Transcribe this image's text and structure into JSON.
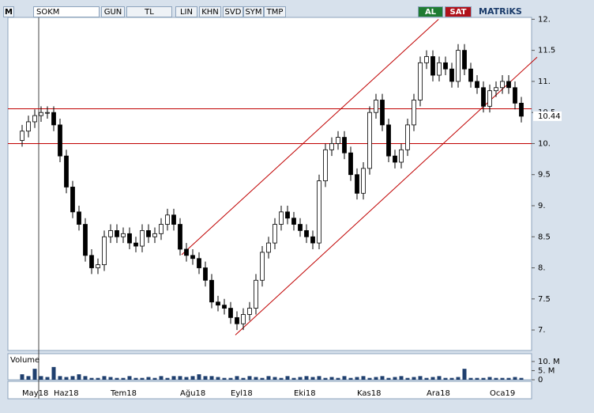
{
  "toolbar": {
    "symbol": "SOKM",
    "buttons": [
      "GUN",
      "TL",
      "LIN",
      "KHN",
      "SVD",
      "SYM",
      "TMP"
    ],
    "buy": "AL",
    "sell": "SAT",
    "brand": "MATRiKS"
  },
  "chart_data": {
    "type": "candlestick",
    "categories": [
      "May18",
      null,
      null,
      null,
      null,
      "Haz18",
      null,
      null,
      null,
      null,
      null,
      null,
      null,
      null,
      "Tem18",
      null,
      null,
      null,
      null,
      null,
      null,
      null,
      null,
      null,
      null,
      "Ağu18",
      null,
      null,
      null,
      null,
      null,
      null,
      null,
      "Eyl18",
      null,
      null,
      null,
      null,
      null,
      null,
      null,
      null,
      null,
      "Eki18",
      null,
      null,
      null,
      null,
      null,
      null,
      null,
      null,
      null,
      "Kas18",
      null,
      null,
      null,
      null,
      null,
      null,
      null,
      null,
      null,
      null,
      "Ara18",
      null,
      null,
      null,
      null,
      null,
      null,
      null,
      null,
      null,
      "Oca19",
      null,
      null,
      null,
      null,
      null
    ],
    "open": [
      10.05,
      10.2,
      10.35,
      10.45,
      10.5,
      10.5,
      10.3,
      9.8,
      9.3,
      8.9,
      8.7,
      8.2,
      8.0,
      8.05,
      8.5,
      8.6,
      8.5,
      8.55,
      8.4,
      8.35,
      8.6,
      8.5,
      8.55,
      8.7,
      8.85,
      8.7,
      8.3,
      8.2,
      8.15,
      8.0,
      7.8,
      7.45,
      7.4,
      7.35,
      7.2,
      7.1,
      7.25,
      7.35,
      7.8,
      8.25,
      8.4,
      8.7,
      8.9,
      8.8,
      8.7,
      8.6,
      8.5,
      8.4,
      9.4,
      9.9,
      10.0,
      10.1,
      9.85,
      9.5,
      9.2,
      9.6,
      10.5,
      10.7,
      10.3,
      9.8,
      9.7,
      9.9,
      10.3,
      10.7,
      11.3,
      11.4,
      11.1,
      11.3,
      11.2,
      11.0,
      11.5,
      11.2,
      11.0,
      10.9,
      10.6,
      10.85,
      10.9,
      11.0,
      10.9,
      10.65
    ],
    "high": [
      10.3,
      10.45,
      10.55,
      10.6,
      10.6,
      10.6,
      10.4,
      9.9,
      9.4,
      9.0,
      8.8,
      8.3,
      8.15,
      8.6,
      8.7,
      8.7,
      8.65,
      8.65,
      8.5,
      8.7,
      8.7,
      8.65,
      8.8,
      8.95,
      8.95,
      8.8,
      8.4,
      8.3,
      8.25,
      8.1,
      7.9,
      7.55,
      7.5,
      7.45,
      7.3,
      7.35,
      7.45,
      7.9,
      8.35,
      8.5,
      8.8,
      9.0,
      9.0,
      8.9,
      8.8,
      8.7,
      8.6,
      9.5,
      10.0,
      10.1,
      10.2,
      10.2,
      9.95,
      9.6,
      9.7,
      10.6,
      10.8,
      10.8,
      10.4,
      9.9,
      10.0,
      10.4,
      10.8,
      11.4,
      11.5,
      11.5,
      11.4,
      11.4,
      11.3,
      11.6,
      11.6,
      11.3,
      11.1,
      11.0,
      10.95,
      11.0,
      11.1,
      11.1,
      11.0,
      10.75
    ],
    "low": [
      9.95,
      10.1,
      10.25,
      10.35,
      10.4,
      10.2,
      9.7,
      9.2,
      8.8,
      8.6,
      8.1,
      7.9,
      7.9,
      7.95,
      8.4,
      8.4,
      8.4,
      8.3,
      8.25,
      8.25,
      8.4,
      8.4,
      8.45,
      8.6,
      8.6,
      8.2,
      8.1,
      8.05,
      7.9,
      7.7,
      7.35,
      7.3,
      7.25,
      7.1,
      7.0,
      7.0,
      7.15,
      7.25,
      7.7,
      8.15,
      8.3,
      8.6,
      8.7,
      8.6,
      8.5,
      8.4,
      8.3,
      8.3,
      9.3,
      9.8,
      9.9,
      9.75,
      9.4,
      9.1,
      9.1,
      9.5,
      10.4,
      10.2,
      9.7,
      9.6,
      9.6,
      9.8,
      10.2,
      10.6,
      11.2,
      11.0,
      11.0,
      11.1,
      10.9,
      10.9,
      11.1,
      10.9,
      10.8,
      10.5,
      10.5,
      10.75,
      10.8,
      10.8,
      10.55,
      10.34
    ],
    "close": [
      10.2,
      10.35,
      10.45,
      10.5,
      10.5,
      10.3,
      9.8,
      9.3,
      8.9,
      8.7,
      8.2,
      8.0,
      8.05,
      8.5,
      8.6,
      8.5,
      8.55,
      8.4,
      8.35,
      8.6,
      8.5,
      8.55,
      8.7,
      8.85,
      8.7,
      8.3,
      8.2,
      8.15,
      8.0,
      7.8,
      7.45,
      7.4,
      7.35,
      7.2,
      7.1,
      7.25,
      7.35,
      7.8,
      8.25,
      8.4,
      8.7,
      8.9,
      8.8,
      8.7,
      8.6,
      8.5,
      8.4,
      9.4,
      9.9,
      10.0,
      10.1,
      9.85,
      9.5,
      9.2,
      9.6,
      10.5,
      10.7,
      10.3,
      9.8,
      9.7,
      9.9,
      10.3,
      10.7,
      11.3,
      11.4,
      11.1,
      11.3,
      11.2,
      11.0,
      11.5,
      11.2,
      11.0,
      10.9,
      10.6,
      10.85,
      10.9,
      11.0,
      10.9,
      10.65,
      10.44
    ],
    "up_color": "#ffffff",
    "down_color": "#000000",
    "ylim": [
      6.67,
      12.03
    ],
    "yticks": [
      {
        "value": 7,
        "label": "7."
      },
      7.5,
      {
        "value": 8,
        "label": "8."
      },
      8.5,
      {
        "value": 9,
        "label": "9."
      },
      9.5,
      {
        "value": 10,
        "label": "10."
      },
      10.5,
      {
        "value": 11,
        "label": "11."
      },
      11.5,
      {
        "value": 12,
        "label": "12."
      }
    ],
    "last_price": 10.44,
    "h_lines": [
      10.56,
      10.0
    ],
    "line_color": "#c00000",
    "trend_lines": [
      {
        "x": [
          25.25,
          65.9
        ],
        "y": [
          8.21,
          12.0
        ]
      },
      {
        "x": [
          33.75,
          81.5
        ],
        "y": [
          6.92,
          11.39
        ]
      }
    ],
    "volume": {
      "title": "Volume",
      "color": "#1f3f6e",
      "ylim": [
        0,
        14.3
      ],
      "yticks": [
        0,
        {
          "value": 5,
          "label": "5. M"
        },
        {
          "value": 10,
          "label": "10. M"
        }
      ],
      "values": [
        3,
        2,
        6,
        2,
        1.5,
        7,
        2,
        1.5,
        2,
        3,
        2,
        1,
        1,
        2,
        1.5,
        1,
        1,
        2,
        1,
        1,
        1.5,
        1,
        2,
        1,
        2,
        2,
        1.5,
        2,
        3,
        2,
        2,
        1.5,
        1,
        1,
        2,
        1,
        2,
        1.5,
        1,
        2,
        1.5,
        1,
        2,
        1,
        1.5,
        2,
        1.5,
        2,
        1,
        1.5,
        1,
        2,
        1,
        1.5,
        2,
        1,
        1.5,
        2,
        1,
        1.5,
        2,
        1,
        1.5,
        2,
        1,
        1.5,
        2,
        1,
        1,
        1.5,
        6,
        1,
        1,
        1,
        1.5,
        1,
        1,
        1,
        1.5,
        1
      ]
    }
  }
}
